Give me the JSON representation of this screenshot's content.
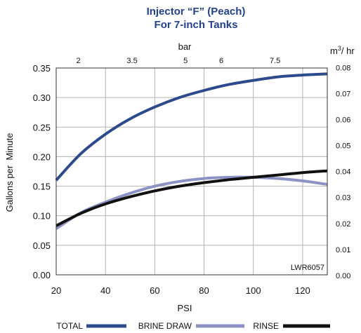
{
  "chart_data": {
    "type": "line",
    "title": "Injector “F” (Peach)",
    "subtitle": "For 7-inch Tanks",
    "xlabel": "PSI",
    "ylabel": "Gallons per  Minute",
    "top_axis_label": "bar",
    "right_axis_unit_prefix": "m",
    "right_axis_unit_sup": "3",
    "right_axis_unit_suffix": "/ hr",
    "watermark": "LWR6057",
    "xlim": [
      20,
      130
    ],
    "ylim": [
      0,
      0.35
    ],
    "x_ticks": [
      "20",
      "40",
      "60",
      "80",
      "100",
      "120"
    ],
    "y_ticks": [
      "0.00",
      "0.05",
      "0.10",
      "0.15",
      "0.20",
      "0.25",
      "0.30",
      "0.35"
    ],
    "top_ticks": [
      {
        "label": "2",
        "psi": 29
      },
      {
        "label": "3.5",
        "psi": 50.8
      },
      {
        "label": "5",
        "psi": 72.5
      },
      {
        "label": "6",
        "psi": 87
      },
      {
        "label": "7.5",
        "psi": 108.8
      }
    ],
    "right_ticks": [
      {
        "label": "0.00",
        "gpm": 0
      },
      {
        "label": "0.01",
        "gpm": 0.044
      },
      {
        "label": "0.02",
        "gpm": 0.088
      },
      {
        "label": "0.03",
        "gpm": 0.132
      },
      {
        "label": "0.04",
        "gpm": 0.176
      },
      {
        "label": "0.05",
        "gpm": 0.22
      },
      {
        "label": "0.06",
        "gpm": 0.264
      },
      {
        "label": "0.07",
        "gpm": 0.308
      },
      {
        "label": "0.08",
        "gpm": 0.352
      }
    ],
    "grid": true,
    "legend_position": "bottom",
    "series": [
      {
        "name": "TOTAL",
        "color": "#2c4a8c",
        "x": [
          20,
          30,
          40,
          50,
          60,
          70,
          80,
          90,
          100,
          110,
          120,
          130
        ],
        "y": [
          0.16,
          0.205,
          0.238,
          0.264,
          0.284,
          0.3,
          0.312,
          0.322,
          0.329,
          0.335,
          0.338,
          0.34
        ]
      },
      {
        "name": "BRINE DRAW",
        "color": "#8c93c4",
        "x": [
          20,
          30,
          40,
          50,
          60,
          70,
          80,
          90,
          100,
          110,
          120,
          130
        ],
        "y": [
          0.078,
          0.105,
          0.123,
          0.138,
          0.15,
          0.158,
          0.163,
          0.165,
          0.165,
          0.163,
          0.159,
          0.153
        ]
      },
      {
        "name": "RINSE",
        "color": "#111111",
        "x": [
          20,
          30,
          40,
          50,
          60,
          70,
          80,
          90,
          100,
          110,
          120,
          130
        ],
        "y": [
          0.083,
          0.104,
          0.12,
          0.132,
          0.142,
          0.15,
          0.156,
          0.161,
          0.165,
          0.169,
          0.173,
          0.176
        ]
      }
    ]
  }
}
